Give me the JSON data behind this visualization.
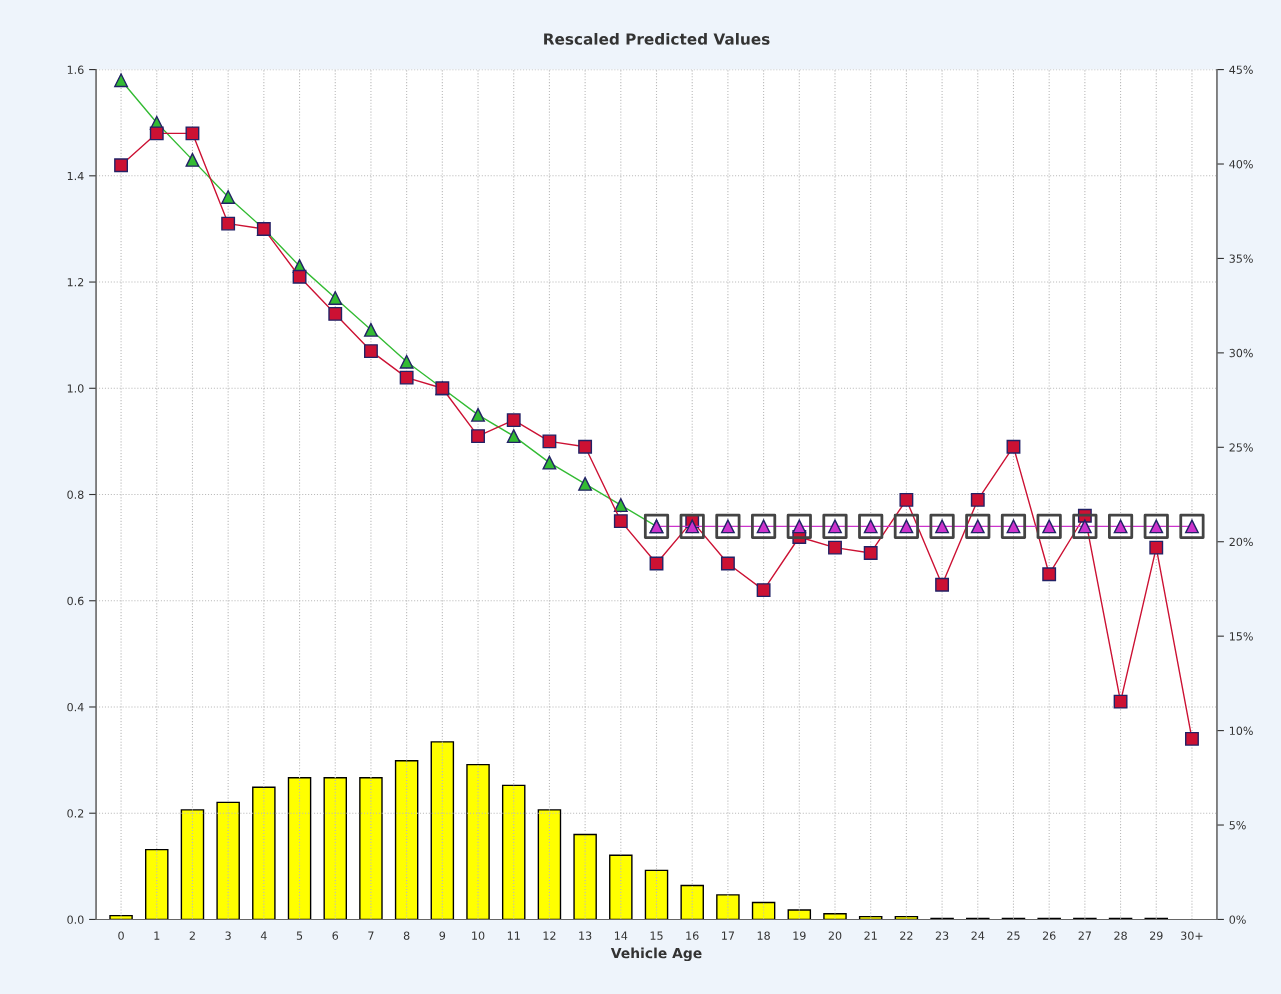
{
  "chart_data": {
    "type": "line",
    "title": "Rescaled Predicted Values",
    "xlabel": "Vehicle Age",
    "categories": [
      "0",
      "1",
      "2",
      "3",
      "4",
      "5",
      "6",
      "7",
      "8",
      "9",
      "10",
      "11",
      "12",
      "13",
      "14",
      "15",
      "16",
      "17",
      "18",
      "19",
      "20",
      "21",
      "22",
      "23",
      "24",
      "25",
      "26",
      "27",
      "28",
      "29",
      "30+"
    ],
    "series": [
      {
        "type": "bar",
        "axis": "y2",
        "color": "#ffff00",
        "values": [
          0.2,
          3.7,
          5.8,
          6.2,
          7.0,
          7.5,
          7.5,
          7.5,
          8.4,
          9.4,
          8.2,
          7.1,
          5.8,
          4.5,
          3.4,
          2.6,
          1.8,
          1.3,
          0.9,
          0.5,
          0.3,
          0.15,
          0.15,
          0.05,
          0.05,
          0.05,
          0.05,
          0.05,
          0.05,
          0.05,
          null
        ]
      },
      {
        "color": "#33bb33",
        "marker": "triangle",
        "values": [
          1.58,
          1.5,
          1.43,
          1.36,
          1.3,
          1.23,
          1.17,
          1.11,
          1.05,
          1.0,
          0.95,
          0.91,
          0.86,
          0.82,
          0.78,
          0.74,
          null,
          null,
          null,
          null,
          null,
          null,
          null,
          null,
          null,
          null,
          null,
          null,
          null,
          null,
          null
        ]
      },
      {
        "color": "#cc1133",
        "marker": "square",
        "values": [
          1.42,
          1.48,
          1.48,
          1.31,
          1.3,
          1.21,
          1.14,
          1.07,
          1.02,
          1.0,
          0.91,
          0.94,
          0.9,
          0.89,
          0.75,
          0.67,
          0.75,
          0.67,
          0.62,
          0.72,
          0.7,
          0.69,
          0.79,
          0.63,
          0.79,
          0.89,
          0.65,
          0.76,
          0.41,
          0.7,
          0.34
        ]
      },
      {
        "color": "#cc33cc",
        "marker": "triangle",
        "values": [
          null,
          null,
          null,
          null,
          null,
          null,
          null,
          null,
          null,
          null,
          null,
          null,
          null,
          null,
          null,
          0.74,
          0.74,
          0.74,
          0.74,
          0.74,
          0.74,
          0.74,
          0.74,
          0.74,
          0.74,
          0.74,
          0.74,
          0.74,
          0.74,
          0.74,
          0.74
        ]
      },
      {
        "type": "scatter",
        "color": "#444444",
        "marker": "square",
        "values": [
          null,
          null,
          null,
          null,
          null,
          null,
          null,
          null,
          null,
          null,
          null,
          null,
          null,
          null,
          null,
          0.74,
          0.74,
          0.74,
          0.74,
          0.74,
          0.74,
          0.74,
          0.74,
          0.74,
          0.74,
          0.74,
          0.74,
          0.74,
          0.74,
          0.74,
          0.74
        ]
      }
    ],
    "ylim": [
      0,
      1.6
    ],
    "yticks": [
      {
        "value": 0,
        "label": "0.0"
      },
      0.2,
      0.4,
      0.6,
      0.8,
      {
        "value": 1,
        "label": "1.0"
      },
      1.2,
      1.4,
      1.6
    ],
    "y2lim": [
      0,
      45
    ],
    "y2ticks": [
      {
        "value": 0,
        "label": "0%"
      },
      {
        "value": 5,
        "label": "5%"
      },
      {
        "value": 10,
        "label": "10%"
      },
      {
        "value": 15,
        "label": "15%"
      },
      {
        "value": 20,
        "label": "20%"
      },
      {
        "value": 25,
        "label": "25%"
      },
      {
        "value": 30,
        "label": "30%"
      },
      {
        "value": 35,
        "label": "35%"
      },
      {
        "value": 40,
        "label": "40%"
      },
      {
        "value": 45,
        "label": "45%"
      }
    ],
    "grid": true
  }
}
